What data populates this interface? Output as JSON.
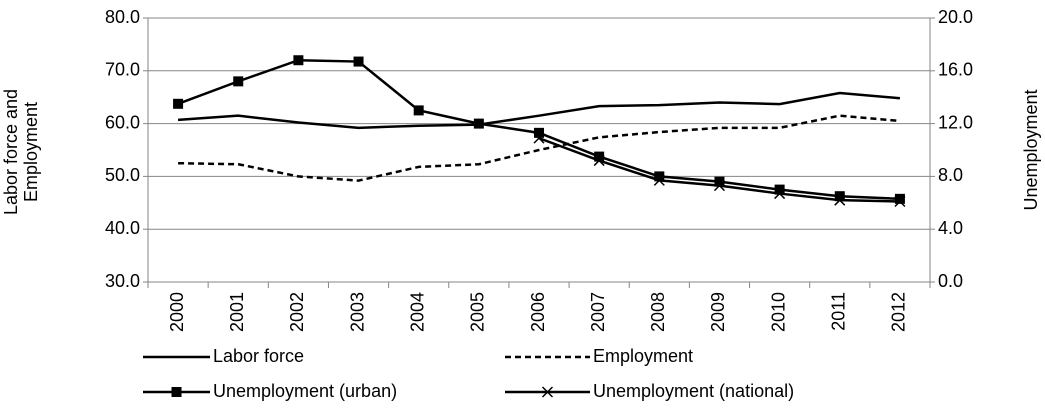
{
  "chart_data": {
    "type": "line",
    "ylabel": "Labor force and Employment",
    "y2label": "Unemployment",
    "categories": [
      "2000",
      "2001",
      "2002",
      "2003",
      "2004",
      "2005",
      "2006",
      "2007",
      "2008",
      "2009",
      "2010",
      "2011",
      "2012"
    ],
    "ylim": [
      30,
      80
    ],
    "yticks": [
      {
        "value": 30,
        "label": "30.0"
      },
      {
        "value": 40,
        "label": "40.0"
      },
      {
        "value": 50,
        "label": "50.0"
      },
      {
        "value": 60,
        "label": "60.0"
      },
      {
        "value": 70,
        "label": "70.0"
      },
      {
        "value": 80,
        "label": "80.0"
      }
    ],
    "y2lim": [
      0,
      20
    ],
    "y2ticks": [
      {
        "value": 0,
        "label": "0.0"
      },
      {
        "value": 4,
        "label": "4.0"
      },
      {
        "value": 8,
        "label": "8.0"
      },
      {
        "value": 12,
        "label": "12.0"
      },
      {
        "value": 16,
        "label": "16.0"
      },
      {
        "value": 20,
        "label": "20.0"
      }
    ],
    "grid": true,
    "legend": "bottom",
    "series": [
      {
        "name": "Labor force",
        "color": "#000000",
        "dash": false,
        "marker": "none",
        "values": [
          60.7,
          61.5,
          60.2,
          59.2,
          59.6,
          59.8,
          61.5,
          63.3,
          63.5,
          64.0,
          63.7,
          65.8,
          64.8
        ]
      },
      {
        "name": "Employment",
        "color": "#000000",
        "dash": true,
        "marker": "none",
        "values": [
          52.5,
          52.3,
          50.0,
          49.2,
          51.8,
          52.3,
          55.0,
          57.4,
          58.4,
          59.2,
          59.2,
          61.5,
          60.5
        ]
      },
      {
        "name": "Unemployment (urban)",
        "color": "#000000",
        "dash": false,
        "marker": "square",
        "axis": "y2",
        "values": [
          13.5,
          15.2,
          16.8,
          16.7,
          13.0,
          12.0,
          11.3,
          9.5,
          8.0,
          7.6,
          7.0,
          6.5,
          6.3
        ]
      },
      {
        "name": "Unemployment (national)",
        "color": "#000000",
        "dash": false,
        "marker": "x",
        "axis": "y2",
        "values": [
          null,
          null,
          null,
          null,
          null,
          null,
          10.9,
          9.2,
          7.7,
          7.3,
          6.7,
          6.2,
          6.1
        ]
      }
    ]
  }
}
